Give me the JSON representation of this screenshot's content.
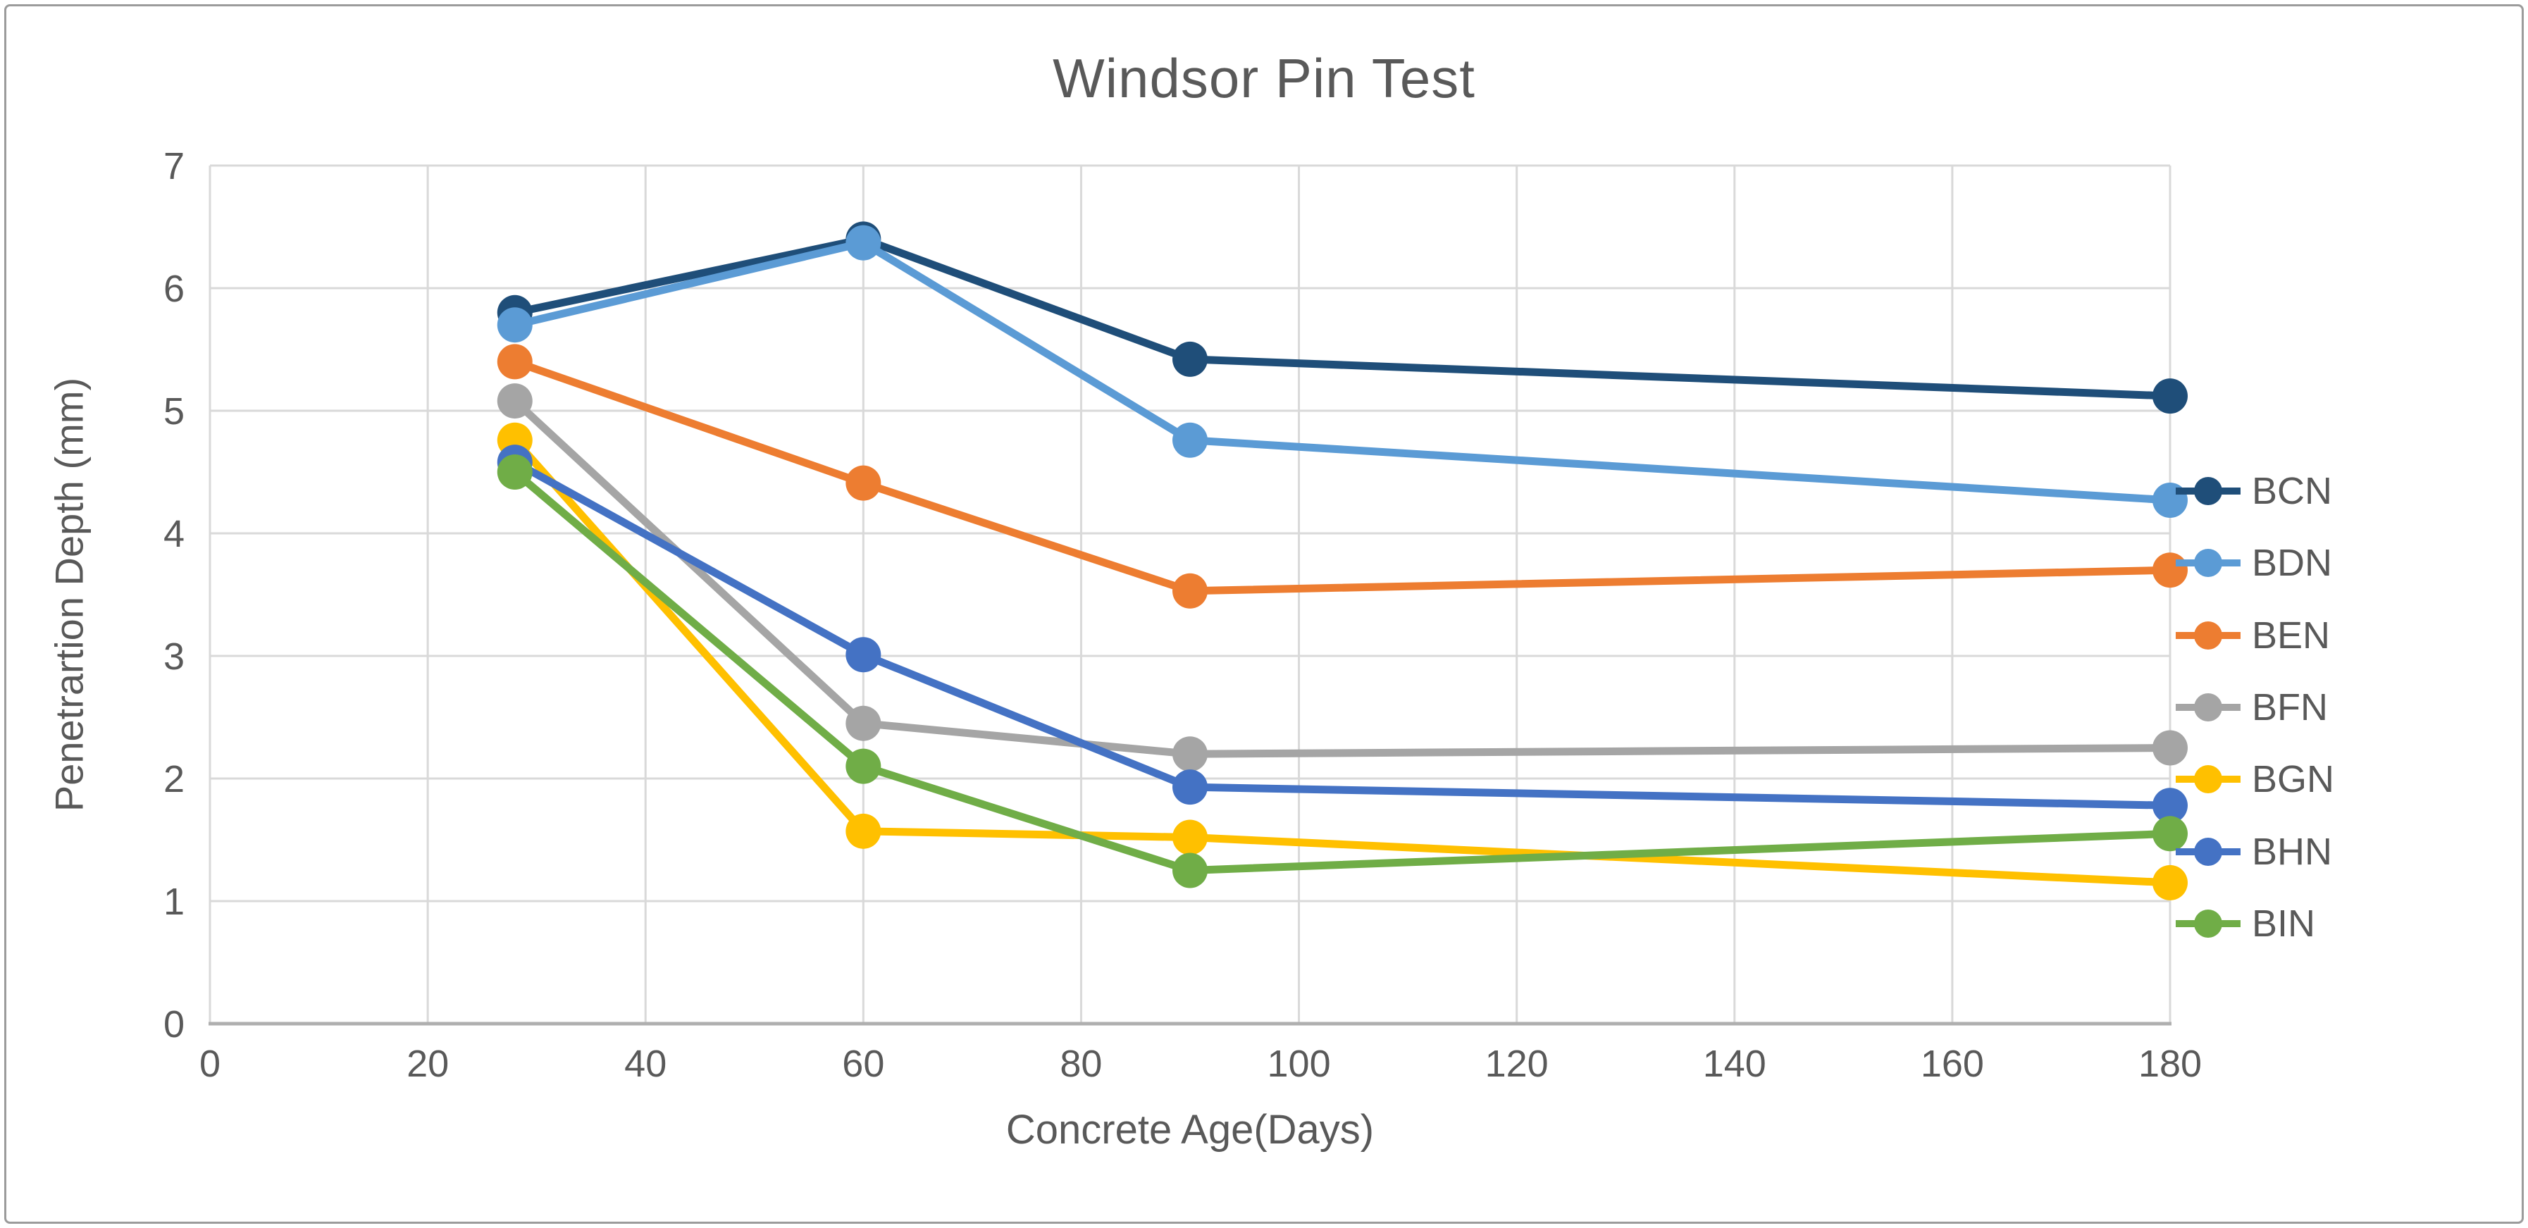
{
  "window": {
    "background": "#ffffff",
    "frame_border_color": "#9b9b9b"
  },
  "chart_data": {
    "type": "line",
    "title": "Windsor Pin Test",
    "xlabel": "Concrete Age(Days)",
    "ylabel": "Penetrartion Depth (mm)",
    "x": [
      28,
      60,
      90,
      180
    ],
    "xlim": [
      0,
      180
    ],
    "ylim": [
      0,
      7
    ],
    "xticks": [
      0,
      20,
      40,
      60,
      80,
      100,
      120,
      140,
      160,
      180
    ],
    "yticks": [
      0,
      1,
      2,
      3,
      4,
      5,
      6,
      7
    ],
    "grid": true,
    "legend_position": "right",
    "marker": "circle",
    "series": [
      {
        "name": "BCN",
        "color": "#1F4E79",
        "values": [
          5.8,
          6.4,
          5.42,
          5.12
        ]
      },
      {
        "name": "BDN",
        "color": "#5B9BD5",
        "values": [
          5.7,
          6.37,
          4.76,
          4.27
        ]
      },
      {
        "name": "BEN",
        "color": "#ED7D31",
        "values": [
          5.4,
          4.41,
          3.53,
          3.7
        ]
      },
      {
        "name": "BFN",
        "color": "#A5A5A5",
        "values": [
          5.08,
          2.45,
          2.2,
          2.25
        ]
      },
      {
        "name": "BGN",
        "color": "#FFC000",
        "values": [
          4.76,
          1.57,
          1.52,
          1.15
        ]
      },
      {
        "name": "BHN",
        "color": "#4472C4",
        "values": [
          4.58,
          3.01,
          1.93,
          1.78
        ]
      },
      {
        "name": "BIN",
        "color": "#70AD47",
        "values": [
          4.5,
          2.1,
          1.25,
          1.55
        ]
      }
    ],
    "colors": {
      "gridline": "#D9D9D9",
      "axis_line": "#AFAFAF",
      "text": "#595959"
    }
  }
}
